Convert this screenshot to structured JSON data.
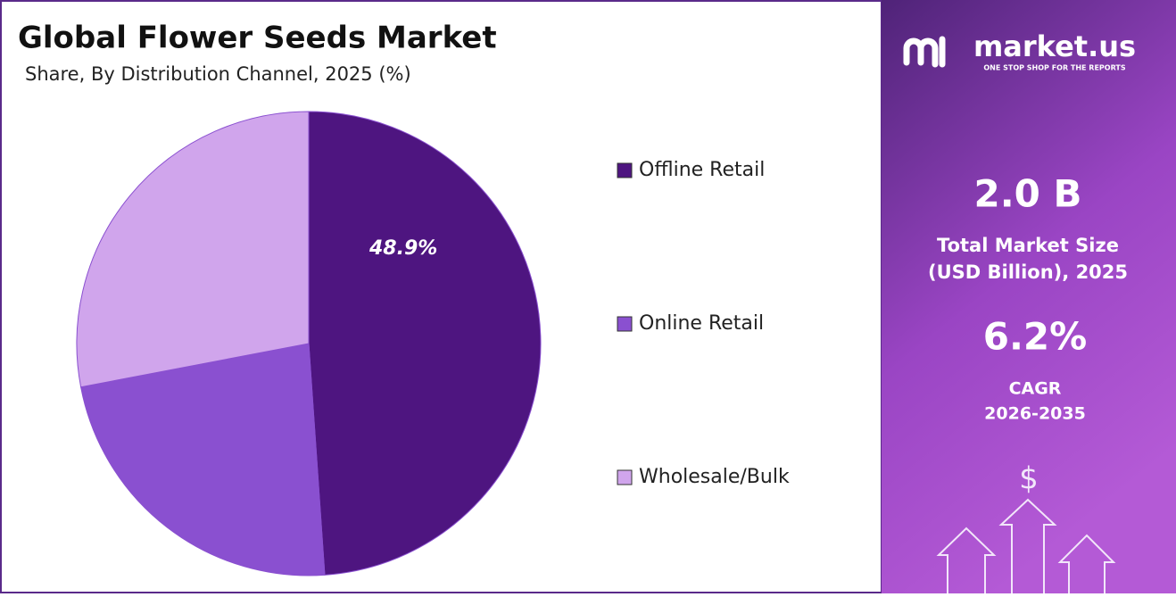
{
  "chart_data": {
    "type": "pie",
    "title": "Global Flower Seeds Market",
    "subtitle": "Share, By Distribution Channel, 2025 (%)",
    "categories": [
      "Offline Retail",
      "Online Retail",
      "Wholesale/Bulk"
    ],
    "values": [
      48.9,
      23.1,
      28.0
    ],
    "value_labels": [
      "48.9%",
      null,
      null
    ],
    "colors": [
      "#4e1580",
      "#8a50d0",
      "#d0a5ec"
    ]
  },
  "panel": {
    "brand": "market.us",
    "tagline": "ONE STOP SHOP FOR THE REPORTS",
    "market_size": "2.0 B",
    "market_size_label": [
      "Total Market Size",
      "(USD Billion), 2025"
    ],
    "cagr": "6.2%",
    "cagr_label": [
      "CAGR",
      "2026-2035"
    ],
    "icon": "$"
  }
}
